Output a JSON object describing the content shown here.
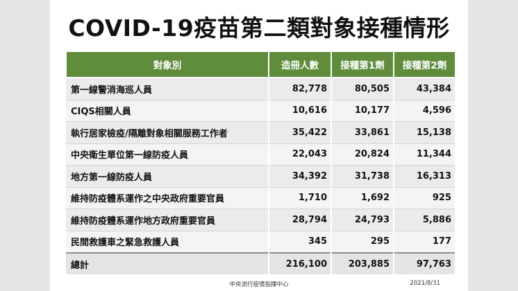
{
  "title": "COVID-19疫苗第二類對象接種情形",
  "table": {
    "headers": [
      "對象別",
      "造冊人數",
      "接種第1劑",
      "接種第2劑"
    ],
    "rows": [
      {
        "label": "第一線警消海巡人員",
        "registered": "82,778",
        "dose1": "80,505",
        "dose2": "43,384"
      },
      {
        "label": "CIQS相關人員",
        "registered": "10,616",
        "dose1": "10,177",
        "dose2": "4,596"
      },
      {
        "label": "執行居家檢疫/隔離對象相關服務工作者",
        "registered": "35,422",
        "dose1": "33,861",
        "dose2": "15,138"
      },
      {
        "label": "中央衛生單位第一線防疫人員",
        "registered": "22,043",
        "dose1": "20,824",
        "dose2": "11,344"
      },
      {
        "label": "地方第一線防疫人員",
        "registered": "34,392",
        "dose1": "31,738",
        "dose2": "16,313"
      },
      {
        "label": "維持防疫體系運作之中央政府重要官員",
        "registered": "1,710",
        "dose1": "1,692",
        "dose2": "925"
      },
      {
        "label": "維持防疫體系運作地方政府重要官員",
        "registered": "28,794",
        "dose1": "24,793",
        "dose2": "5,886"
      },
      {
        "label": "民間救護車之緊急救護人員",
        "registered": "345",
        "dose1": "295",
        "dose2": "177"
      }
    ],
    "total": {
      "label": "總計",
      "registered": "216,100",
      "dose1": "203,885",
      "dose2": "97,763"
    }
  },
  "footer": {
    "source": "中央流行疫情指揮中心",
    "date": "2021/8/31"
  },
  "colors": {
    "header_bg": "#5f8d3c",
    "row_bg": "#ebebeb",
    "page_bg": "#ffffff"
  }
}
